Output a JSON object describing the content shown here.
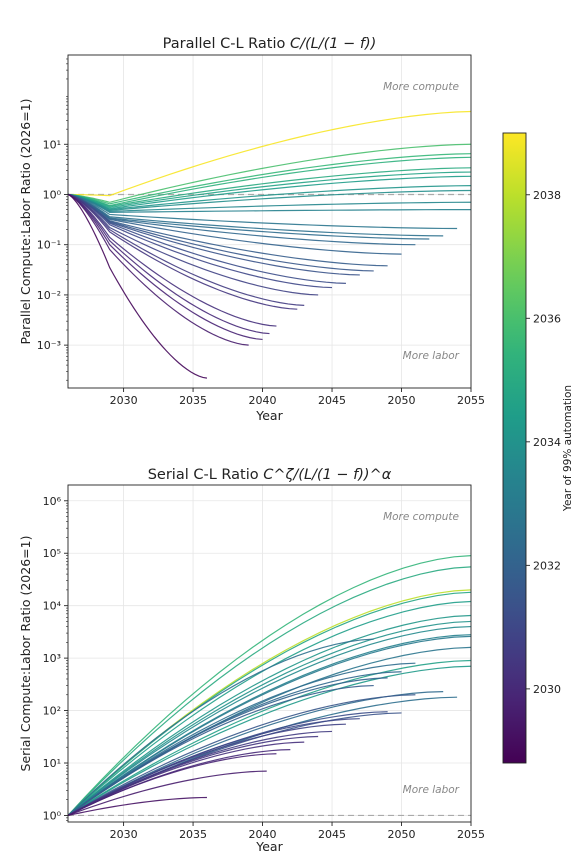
{
  "chart_data": [
    {
      "type": "line",
      "title": "Parallel C-L Ratio C/(L/(1 − f))",
      "title_parts": {
        "plain": "Parallel C-L Ratio ",
        "math": "C/(L/(1 − f))"
      },
      "xlabel": "Year",
      "ylabel": "Parallel Compute:Labor Ratio (2026=1)",
      "yscale": "log",
      "xlim": [
        2026,
        2055
      ],
      "ylim": [
        0.00014,
        600
      ],
      "xticks": [
        2030,
        2035,
        2040,
        2045,
        2050,
        2055
      ],
      "xtick_labels": [
        "2030",
        "2035",
        "2040",
        "2045",
        "2050",
        "2055"
      ],
      "yticks": [
        0.001,
        0.01,
        0.1,
        1,
        10
      ],
      "ytick_labels": [
        "10⁻³",
        "10⁻²",
        "10⁻¹",
        "10⁰",
        "10¹"
      ],
      "grid": true,
      "reference_line": 1,
      "annotations": {
        "upper": "More compute",
        "lower": "More labor"
      },
      "series": [
        {
          "t99": 2038.9,
          "x": [
            2026,
            2029,
            2055
          ],
          "y": [
            1,
            0.95,
            45
          ]
        },
        {
          "t99": 2036.0,
          "x": [
            2026,
            2029,
            2055
          ],
          "y": [
            1,
            0.7,
            10
          ]
        },
        {
          "t99": 2035.6,
          "x": [
            2026,
            2029,
            2055
          ],
          "y": [
            1,
            0.65,
            6.5
          ]
        },
        {
          "t99": 2035.3,
          "x": [
            2026,
            2029,
            2055
          ],
          "y": [
            1,
            0.6,
            5.5
          ]
        },
        {
          "t99": 2035.0,
          "x": [
            2026,
            2029,
            2055
          ],
          "y": [
            1,
            0.58,
            3.4
          ]
        },
        {
          "t99": 2034.7,
          "x": [
            2026,
            2029,
            2055
          ],
          "y": [
            1,
            0.55,
            2.8
          ]
        },
        {
          "t99": 2034.4,
          "x": [
            2026,
            2029,
            2055
          ],
          "y": [
            1,
            0.52,
            2.3
          ]
        },
        {
          "t99": 2034.1,
          "x": [
            2026,
            2029,
            2055
          ],
          "y": [
            1,
            0.5,
            1.5
          ]
        },
        {
          "t99": 2033.8,
          "x": [
            2026,
            2029,
            2055
          ],
          "y": [
            1,
            0.48,
            1.2
          ]
        },
        {
          "t99": 2033.5,
          "x": [
            2026,
            2029,
            2055
          ],
          "y": [
            1,
            0.46,
            0.7
          ]
        },
        {
          "t99": 2033.3,
          "x": [
            2026,
            2029,
            2055
          ],
          "y": [
            1,
            0.44,
            0.5
          ]
        },
        {
          "t99": 2032.8,
          "x": [
            2026,
            2029,
            2054
          ],
          "y": [
            1,
            0.4,
            0.21
          ]
        },
        {
          "t99": 2032.6,
          "x": [
            2026,
            2029,
            2053
          ],
          "y": [
            1,
            0.36,
            0.15
          ]
        },
        {
          "t99": 2032.4,
          "x": [
            2026,
            2029,
            2052
          ],
          "y": [
            1,
            0.34,
            0.13
          ]
        },
        {
          "t99": 2032.2,
          "x": [
            2026,
            2029,
            2051
          ],
          "y": [
            1,
            0.33,
            0.1
          ]
        },
        {
          "t99": 2032.0,
          "x": [
            2026,
            2029,
            2050
          ],
          "y": [
            1,
            0.32,
            0.065
          ]
        },
        {
          "t99": 2031.8,
          "x": [
            2026,
            2029,
            2049
          ],
          "y": [
            1,
            0.3,
            0.038
          ]
        },
        {
          "t99": 2031.6,
          "x": [
            2026,
            2029,
            2048
          ],
          "y": [
            1,
            0.29,
            0.03
          ]
        },
        {
          "t99": 2031.4,
          "x": [
            2026,
            2029,
            2047
          ],
          "y": [
            1,
            0.28,
            0.025
          ]
        },
        {
          "t99": 2031.2,
          "x": [
            2026,
            2029,
            2046
          ],
          "y": [
            1,
            0.27,
            0.017
          ]
        },
        {
          "t99": 2031.0,
          "x": [
            2026,
            2029,
            2045
          ],
          "y": [
            1,
            0.25,
            0.014
          ]
        },
        {
          "t99": 2030.8,
          "x": [
            2026,
            2029,
            2044
          ],
          "y": [
            1,
            0.22,
            0.01
          ]
        },
        {
          "t99": 2030.6,
          "x": [
            2026,
            2029,
            2043
          ],
          "y": [
            1,
            0.2,
            0.0062
          ]
        },
        {
          "t99": 2030.4,
          "x": [
            2026,
            2029,
            2042.5
          ],
          "y": [
            1,
            0.18,
            0.0052
          ]
        },
        {
          "t99": 2030.2,
          "x": [
            2026,
            2029,
            2041
          ],
          "y": [
            1,
            0.14,
            0.0024
          ]
        },
        {
          "t99": 2030.0,
          "x": [
            2026,
            2029,
            2040.5
          ],
          "y": [
            1,
            0.12,
            0.0017
          ]
        },
        {
          "t99": 2029.8,
          "x": [
            2026,
            2029,
            2040
          ],
          "y": [
            1,
            0.1,
            0.0013
          ]
        },
        {
          "t99": 2029.6,
          "x": [
            2026,
            2029,
            2039
          ],
          "y": [
            1,
            0.08,
            0.001
          ]
        },
        {
          "t99": 2029.0,
          "x": [
            2026,
            2029,
            2036
          ],
          "y": [
            1,
            0.035,
            0.00022
          ]
        }
      ]
    },
    {
      "type": "line",
      "title": "Serial C-L Ratio C^ζ/(L/(1 − f))^α",
      "title_parts": {
        "plain": "Serial C-L Ratio ",
        "math": "C^ζ/(L/(1 − f))^α"
      },
      "xlabel": "Year",
      "ylabel": "Serial Compute:Labor Ratio (2026=1)",
      "yscale": "log",
      "xlim": [
        2026,
        2055
      ],
      "ylim": [
        0.75,
        2000000
      ],
      "xticks": [
        2030,
        2035,
        2040,
        2045,
        2050,
        2055
      ],
      "xtick_labels": [
        "2030",
        "2035",
        "2040",
        "2045",
        "2050",
        "2055"
      ],
      "yticks": [
        1,
        10,
        100,
        1000,
        10000,
        100000,
        1000000
      ],
      "ytick_labels": [
        "10⁰",
        "10¹",
        "10²",
        "10³",
        "10⁴",
        "10⁵",
        "10⁶"
      ],
      "grid": true,
      "reference_line": 1,
      "annotations": {
        "upper": "More compute",
        "lower": "More labor"
      },
      "series": [
        {
          "t99": 2035.5,
          "x": [
            2026,
            2055
          ],
          "y": [
            1,
            90000
          ]
        },
        {
          "t99": 2035.0,
          "x": [
            2026,
            2055
          ],
          "y": [
            1,
            55000
          ]
        },
        {
          "t99": 2038.0,
          "x": [
            2026,
            2055
          ],
          "y": [
            1,
            20000
          ]
        },
        {
          "t99": 2034.8,
          "x": [
            2026,
            2055
          ],
          "y": [
            1,
            18000
          ]
        },
        {
          "t99": 2034.5,
          "x": [
            2026,
            2055
          ],
          "y": [
            1,
            12000
          ]
        },
        {
          "t99": 2034.2,
          "x": [
            2026,
            2055
          ],
          "y": [
            1,
            6500
          ]
        },
        {
          "t99": 2034.0,
          "x": [
            2026,
            2055
          ],
          "y": [
            1,
            5000
          ]
        },
        {
          "t99": 2033.6,
          "x": [
            2026,
            2055
          ],
          "y": [
            1,
            4000
          ]
        },
        {
          "t99": 2033.3,
          "x": [
            2026,
            2055
          ],
          "y": [
            1,
            2800
          ]
        },
        {
          "t99": 2033.0,
          "x": [
            2026,
            2055
          ],
          "y": [
            1,
            2600
          ]
        },
        {
          "t99": 2032.8,
          "x": [
            2026,
            2055
          ],
          "y": [
            1,
            1600
          ]
        },
        {
          "t99": 2034.6,
          "x": [
            2026,
            2055
          ],
          "y": [
            1,
            900
          ]
        },
        {
          "t99": 2034.3,
          "x": [
            2026,
            2055
          ],
          "y": [
            1,
            700
          ]
        },
        {
          "t99": 2032.6,
          "x": [
            2026,
            2048
          ],
          "y": [
            1,
            2300
          ]
        },
        {
          "t99": 2032.4,
          "x": [
            2026,
            2051
          ],
          "y": [
            1,
            800
          ]
        },
        {
          "t99": 2032.2,
          "x": [
            2026,
            2050
          ],
          "y": [
            1,
            550
          ]
        },
        {
          "t99": 2032.0,
          "x": [
            2026,
            2049
          ],
          "y": [
            1,
            420
          ]
        },
        {
          "t99": 2031.8,
          "x": [
            2026,
            2048
          ],
          "y": [
            1,
            300
          ]
        },
        {
          "t99": 2032.5,
          "x": [
            2026,
            2054
          ],
          "y": [
            1,
            180
          ]
        },
        {
          "t99": 2032.3,
          "x": [
            2026,
            2053
          ],
          "y": [
            1,
            230
          ]
        },
        {
          "t99": 2031.6,
          "x": [
            2026,
            2051
          ],
          "y": [
            1,
            200
          ]
        },
        {
          "t99": 2031.4,
          "x": [
            2026,
            2050
          ],
          "y": [
            1,
            90
          ]
        },
        {
          "t99": 2031.2,
          "x": [
            2026,
            2049
          ],
          "y": [
            1,
            95
          ]
        },
        {
          "t99": 2031.0,
          "x": [
            2026,
            2047
          ],
          "y": [
            1,
            70
          ]
        },
        {
          "t99": 2030.8,
          "x": [
            2026,
            2046
          ],
          "y": [
            1,
            55
          ]
        },
        {
          "t99": 2030.6,
          "x": [
            2026,
            2045
          ],
          "y": [
            1,
            40
          ]
        },
        {
          "t99": 2030.4,
          "x": [
            2026,
            2044
          ],
          "y": [
            1,
            32
          ]
        },
        {
          "t99": 2030.2,
          "x": [
            2026,
            2043
          ],
          "y": [
            1,
            25
          ]
        },
        {
          "t99": 2030.0,
          "x": [
            2026,
            2042
          ],
          "y": [
            1,
            18
          ]
        },
        {
          "t99": 2029.8,
          "x": [
            2026,
            2041
          ],
          "y": [
            1,
            15
          ]
        },
        {
          "t99": 2029.6,
          "x": [
            2026,
            2040.3
          ],
          "y": [
            1,
            7
          ]
        },
        {
          "t99": 2029.3,
          "x": [
            2026,
            2036
          ],
          "y": [
            1,
            2.2
          ]
        }
      ]
    }
  ],
  "colorbar": {
    "label": "Year of 99% automation",
    "range": [
      2028.8,
      2039.0
    ],
    "ticks": [
      2030,
      2032,
      2034,
      2036,
      2038
    ],
    "tick_labels": [
      "2030",
      "2032",
      "2034",
      "2036",
      "2038"
    ],
    "colormap": "viridis"
  }
}
